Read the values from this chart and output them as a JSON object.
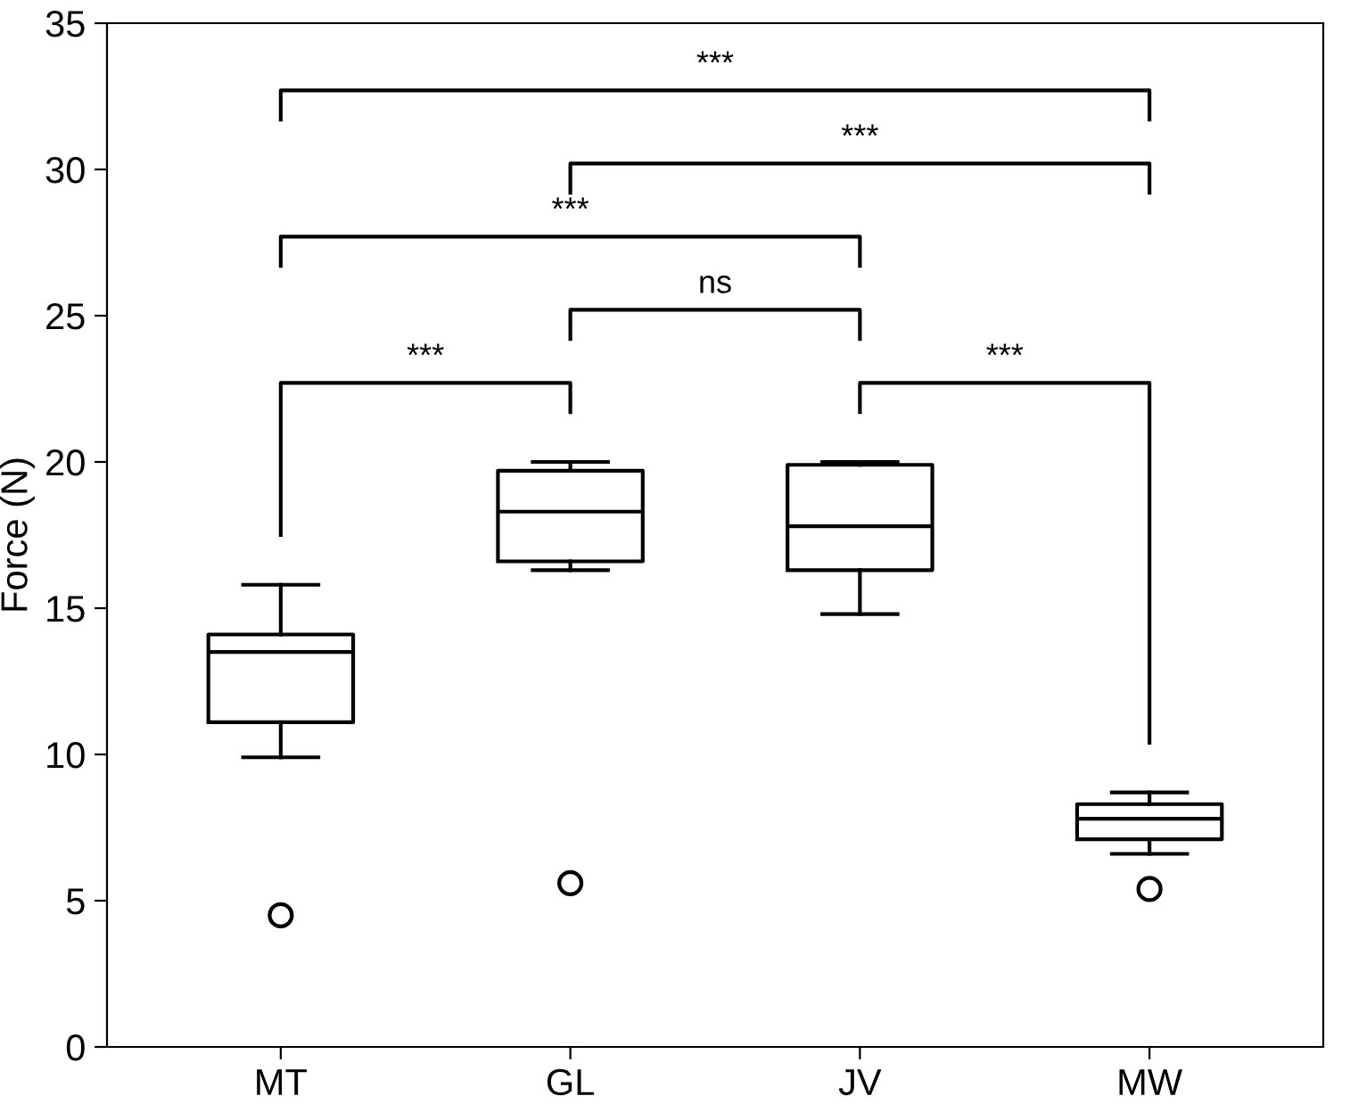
{
  "chart_data": {
    "type": "box",
    "ylabel": "Force (N)",
    "categories": [
      "MT",
      "GL",
      "JV",
      "MW"
    ],
    "boxes": [
      {
        "low": 9.9,
        "q1": 11.1,
        "median": 13.5,
        "q3": 14.1,
        "high": 15.8,
        "outliers": [
          4.5
        ]
      },
      {
        "low": 16.3,
        "q1": 16.6,
        "median": 18.3,
        "q3": 19.7,
        "high": 20.0,
        "outliers": [
          5.6
        ]
      },
      {
        "low": 14.8,
        "q1": 16.3,
        "median": 17.8,
        "q3": 19.9,
        "high": 20.0
      },
      {
        "low": 6.6,
        "q1": 7.1,
        "median": 7.8,
        "q3": 8.3,
        "high": 8.7,
        "outliers": [
          5.4
        ]
      }
    ],
    "color": "#000000",
    "ylim": [
      0,
      35
    ],
    "yticks": [
      0,
      5,
      10,
      15,
      20,
      25,
      30,
      35
    ],
    "grid": false,
    "annotations": [
      "***",
      "***",
      "***",
      "ns",
      "***",
      "***"
    ]
  }
}
